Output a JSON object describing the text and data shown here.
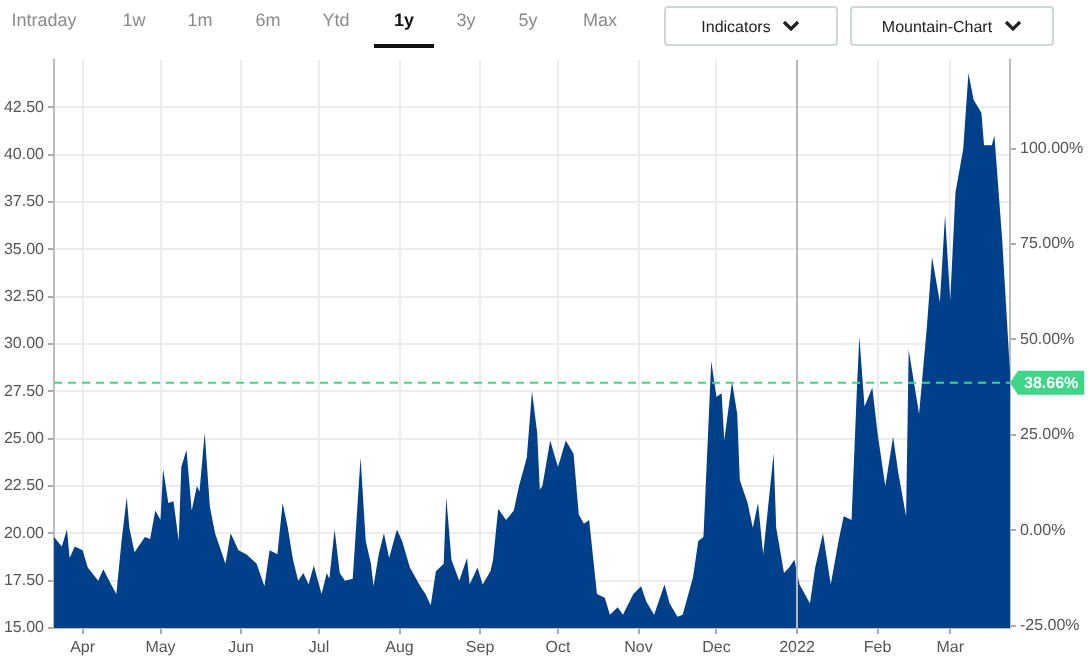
{
  "chart_data": {
    "type": "area",
    "annotations": [
      "Intraday",
      "1w",
      "1m",
      "6m",
      "Ytd",
      "1y",
      "3y",
      "5y",
      "Max",
      "Indicators",
      "Mountain-Chart"
    ],
    "x": [
      "2021-03-21",
      "2021-03-24",
      "2021-03-26",
      "2021-03-27",
      "2021-03-29",
      "2021-04-01",
      "2021-04-03",
      "2021-04-07",
      "2021-04-09",
      "2021-04-12",
      "2021-04-14",
      "2021-04-16",
      "2021-04-18",
      "2021-04-19",
      "2021-04-21",
      "2021-04-25",
      "2021-04-27",
      "2021-04-29",
      "2021-05-01",
      "2021-05-02",
      "2021-05-04",
      "2021-05-06",
      "2021-05-08",
      "2021-05-09",
      "2021-05-11",
      "2021-05-13",
      "2021-05-15",
      "2021-05-16",
      "2021-05-18",
      "2021-05-20",
      "2021-05-22",
      "2021-05-26",
      "2021-05-28",
      "2021-05-31",
      "2021-06-03",
      "2021-06-07",
      "2021-06-10",
      "2021-06-12",
      "2021-06-15",
      "2021-06-17",
      "2021-06-19",
      "2021-06-21",
      "2021-06-23",
      "2021-06-25",
      "2021-06-27",
      "2021-06-29",
      "2021-07-02",
      "2021-07-04",
      "2021-07-05",
      "2021-07-07",
      "2021-07-09",
      "2021-07-11",
      "2021-07-14",
      "2021-07-17",
      "2021-07-19",
      "2021-07-21",
      "2021-07-22",
      "2021-07-24",
      "2021-07-26",
      "2021-07-28",
      "2021-07-31",
      "2021-08-02",
      "2021-08-05",
      "2021-08-09",
      "2021-08-11",
      "2021-08-13",
      "2021-08-15",
      "2021-08-18",
      "2021-08-19",
      "2021-08-21",
      "2021-08-24",
      "2021-08-27",
      "2021-08-28",
      "2021-08-31",
      "2021-09-02",
      "2021-09-05",
      "2021-09-06",
      "2021-09-08",
      "2021-09-11",
      "2021-09-14",
      "2021-09-16",
      "2021-09-19",
      "2021-09-21",
      "2021-09-23",
      "2021-09-24",
      "2021-09-25",
      "2021-09-28",
      "2021-10-01",
      "2021-10-04",
      "2021-10-07",
      "2021-10-09",
      "2021-10-11",
      "2021-10-13",
      "2021-10-16",
      "2021-10-19",
      "2021-10-21",
      "2021-10-24",
      "2021-10-26",
      "2021-10-30",
      "2021-11-02",
      "2021-11-04",
      "2021-11-07",
      "2021-11-11",
      "2021-11-13",
      "2021-11-16",
      "2021-11-18",
      "2021-11-22",
      "2021-11-24",
      "2021-11-26",
      "2021-11-29",
      "2021-12-01",
      "2021-12-03",
      "2021-12-04",
      "2021-12-07",
      "2021-12-09",
      "2021-12-10",
      "2021-12-13",
      "2021-12-15",
      "2021-12-17",
      "2021-12-19",
      "2021-12-23",
      "2021-12-24",
      "2021-12-27",
      "2021-12-29",
      "2021-12-31",
      "2022-01-02",
      "2022-01-06",
      "2022-01-08",
      "2022-01-11",
      "2022-01-14",
      "2022-01-17",
      "2022-01-19",
      "2022-01-22",
      "2022-01-24",
      "2022-01-25",
      "2022-01-27",
      "2022-01-30",
      "2022-02-01",
      "2022-02-04",
      "2022-02-07",
      "2022-02-09",
      "2022-02-12",
      "2022-02-13",
      "2022-02-17",
      "2022-02-20",
      "2022-02-22",
      "2022-02-25",
      "2022-02-27",
      "2022-03-01",
      "2022-03-03",
      "2022-03-06",
      "2022-03-08",
      "2022-03-10",
      "2022-03-13",
      "2022-03-14",
      "2022-03-17",
      "2022-03-18",
      "2022-03-21",
      "2022-03-24"
    ],
    "series": [
      {
        "color": "#003f8a",
        "values": [
          19.8,
          19.3,
          20.2,
          18.7,
          19.3,
          19.1,
          18.2,
          17.5,
          18.1,
          17.3,
          16.8,
          19.6,
          21.9,
          20.3,
          19.0,
          19.8,
          19.7,
          21.2,
          20.7,
          23.4,
          21.6,
          21.7,
          19.6,
          23.5,
          24.4,
          21.2,
          22.5,
          22.2,
          25.3,
          21.4,
          20.0,
          18.4,
          20.0,
          19.1,
          18.9,
          18.4,
          17.2,
          19.1,
          18.9,
          21.6,
          20.3,
          18.6,
          17.5,
          17.9,
          17.3,
          18.3,
          16.8,
          17.9,
          17.6,
          20.2,
          17.9,
          17.5,
          17.6,
          24.0,
          19.6,
          18.4,
          17.2,
          18.9,
          20.0,
          18.7,
          20.2,
          19.6,
          18.2,
          17.2,
          16.8,
          16.2,
          18.0,
          18.4,
          21.9,
          18.6,
          17.5,
          18.7,
          17.3,
          18.2,
          17.3,
          18.0,
          18.6,
          21.3,
          20.7,
          21.2,
          22.5,
          24.0,
          27.5,
          25.3,
          22.3,
          22.5,
          24.9,
          23.5,
          24.9,
          24.2,
          21.0,
          20.5,
          20.7,
          16.8,
          16.6,
          15.7,
          16.1,
          15.7,
          16.8,
          17.2,
          16.4,
          15.7,
          17.3,
          16.3,
          15.6,
          15.7,
          17.7,
          19.6,
          19.8,
          29.1,
          27.2,
          27.4,
          24.9,
          28.0,
          26.3,
          22.8,
          21.6,
          20.3,
          21.6,
          18.9,
          24.2,
          20.3,
          17.9,
          18.2,
          18.6,
          17.3,
          16.3,
          18.2,
          20.0,
          17.3,
          19.6,
          20.9,
          20.7,
          27.4,
          30.4,
          26.7,
          27.7,
          25.3,
          22.5,
          25.1,
          23.2,
          20.9,
          29.7,
          26.3,
          30.9,
          34.6,
          32.2,
          36.8,
          32.3,
          38.0,
          40.3,
          44.3,
          42.9,
          42.2,
          40.5,
          40.5,
          41.0,
          35.5,
          28.5
        ]
      }
    ],
    "xlim": [
      "2021-03-21",
      "2022-03-24"
    ],
    "xticks": [
      {
        "value": "2021-04-01",
        "label": "Apr"
      },
      {
        "value": "2021-05-01",
        "label": "May"
      },
      {
        "value": "2021-06-01",
        "label": "Jun"
      },
      {
        "value": "2021-07-01",
        "label": "Jul"
      },
      {
        "value": "2021-08-01",
        "label": "Aug"
      },
      {
        "value": "2021-09-01",
        "label": "Sep"
      },
      {
        "value": "2021-10-01",
        "label": "Oct"
      },
      {
        "value": "2021-11-01",
        "label": "Nov"
      },
      {
        "value": "2021-12-01",
        "label": "Dec"
      },
      {
        "value": "2022-01-01",
        "label": "2022"
      },
      {
        "value": "2022-02-01",
        "label": "Feb"
      },
      {
        "value": "2022-03-01",
        "label": "Mar"
      }
    ],
    "ylim": [
      15,
      45
    ],
    "yticks": [
      {
        "value": 15,
        "label": "15.00"
      },
      {
        "value": 17.5,
        "label": "17.50"
      },
      {
        "value": 20,
        "label": "20.00"
      },
      {
        "value": 22.5,
        "label": "22.50"
      },
      {
        "value": 25,
        "label": "25.00"
      },
      {
        "value": 27.5,
        "label": "27.50"
      },
      {
        "value": 30,
        "label": "30.00"
      },
      {
        "value": 32.5,
        "label": "32.50"
      },
      {
        "value": 35,
        "label": "35.00"
      },
      {
        "value": 37.5,
        "label": "37.50"
      },
      {
        "value": 40,
        "label": "40.00"
      },
      {
        "value": 42.5,
        "label": "42.50"
      }
    ],
    "y2lim": [
      -25.6,
      123.2
    ],
    "y2ticks": [
      {
        "value": -25,
        "label": "-25.00%"
      },
      {
        "value": 0,
        "label": "0.00%"
      },
      {
        "value": 25,
        "label": "25.00%"
      },
      {
        "value": 50,
        "label": "50.00%"
      },
      {
        "value": 75,
        "label": "75.00%"
      },
      {
        "value": 100,
        "label": "100.00%"
      }
    ],
    "ref_lines": [
      {
        "axis": "y2",
        "value": 38.66,
        "label": "38.66%",
        "color": "#3fd68a",
        "line_style": "dashed"
      },
      {
        "axis": "x",
        "value": "2022-01-01",
        "color": "#b8b8b8",
        "line_style": "solid"
      }
    ],
    "grid": true,
    "legend": false
  }
}
